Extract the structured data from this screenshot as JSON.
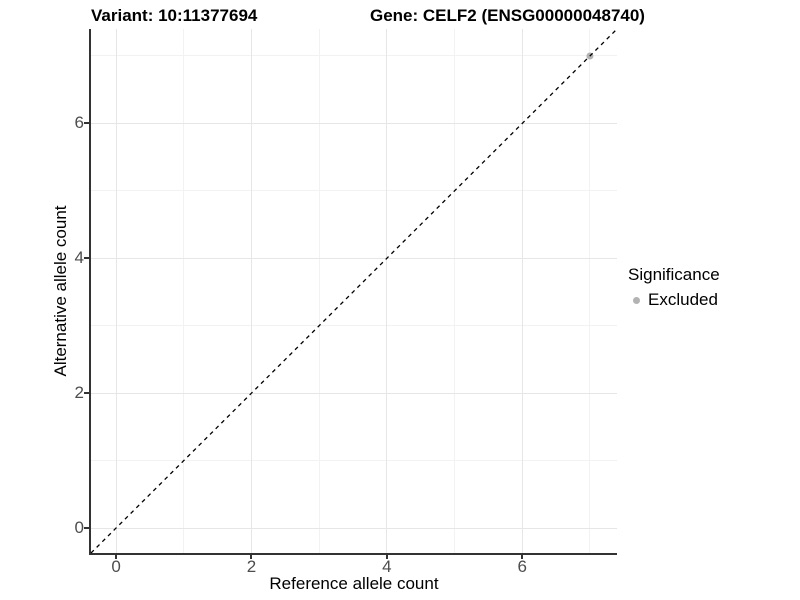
{
  "header": {
    "variant_title": "Variant: 10:11377694",
    "gene_title": "Gene: CELF2 (ENSG00000048740)"
  },
  "x_axis": {
    "title": "Reference allele count"
  },
  "y_axis": {
    "title": "Alternative allele count"
  },
  "legend": {
    "title": "Significance",
    "items": [
      {
        "label": "Excluded",
        "color": "#b3b3b3"
      }
    ]
  },
  "colors": {
    "background": "#ffffff",
    "axis_line": "#333333",
    "grid_major": "#e6e6e6",
    "grid_minor": "#f2f2f2",
    "tick_label": "#4d4d4d",
    "point_excluded": "#b3b3b3",
    "identity_line": "#000000"
  },
  "chart_data": {
    "type": "scatter",
    "title": "Variant: 10:11377694  |  Gene: CELF2 (ENSG00000048740)",
    "xlabel": "Reference allele count",
    "ylabel": "Alternative allele count",
    "xlim": [
      -0.37,
      7.4
    ],
    "ylim": [
      -0.37,
      7.4
    ],
    "x_major_ticks": [
      0,
      2,
      4,
      6
    ],
    "y_major_ticks": [
      0,
      2,
      4,
      6
    ],
    "x_minor_ticks": [
      1,
      3,
      5,
      7
    ],
    "y_minor_ticks": [
      1,
      3,
      5,
      7
    ],
    "grid": true,
    "legend_position": "right",
    "series": [
      {
        "name": "Excluded",
        "color": "#b3b3b3",
        "points": [
          {
            "x": 7,
            "y": 7
          }
        ]
      }
    ],
    "reference_line": {
      "type": "identity_y_equals_x",
      "style": "dashed",
      "color": "#000000"
    }
  }
}
